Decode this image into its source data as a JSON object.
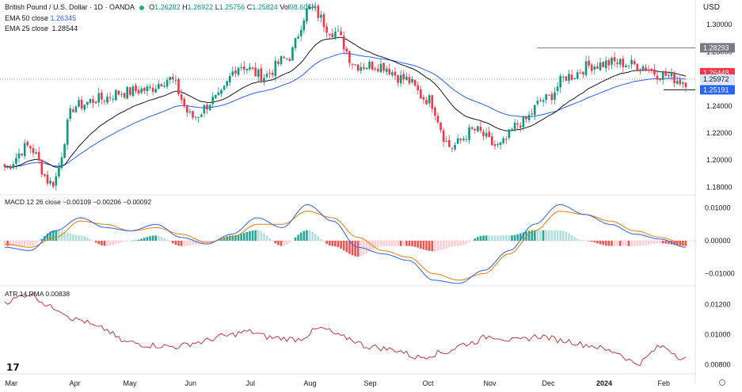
{
  "header": {
    "symbol": "British Pound / U.S. Dollar · 1D · OANDA",
    "o_label": "O",
    "o": "1.26282",
    "h_label": "H",
    "h": "1.26922",
    "l_label": "L",
    "l": "1.25756",
    "c_label": "C",
    "c": "1.25824",
    "vol_label": "Vol",
    "vol": "98.606K",
    "ema50_label": "EMA 50 close",
    "ema50": "1.26345",
    "ema25_label": "EMA 25 close",
    "ema25": "1.28544",
    "currency": "USD"
  },
  "price_axis": {
    "ticks": [
      "1.30000",
      "1.28000",
      "1.26000",
      "1.24000",
      "1.22000",
      "1.20000",
      "1.18000"
    ],
    "badges": [
      {
        "text": "1.28293",
        "color": "#787b86",
        "value": 1.28293
      },
      {
        "text": "1.26448",
        "color": "#f23645",
        "value": 1.26448
      },
      {
        "text": "1.25972",
        "color": "#dbe4f7",
        "value": 1.25972
      },
      {
        "text": "1.25191",
        "color": "#2962ff",
        "value": 1.25191
      }
    ]
  },
  "macd": {
    "label": "MACD 12 26 close",
    "v1": "−0.00109",
    "v2": "−0.00206",
    "v3": "−0.00092",
    "ticks": [
      "0.01000",
      "0.00000",
      "−0.01000"
    ]
  },
  "atr": {
    "label": "ATR 14 RMA",
    "value": "0.00838",
    "ticks": [
      "0.01200",
      "0.01000",
      "0.00800"
    ]
  },
  "x_axis": {
    "labels": [
      "Mar",
      "Apr",
      "May",
      "Jun",
      "Jul",
      "Aug",
      "Sep",
      "Oct",
      "Nov",
      "Dec",
      "2024",
      "Feb"
    ]
  },
  "colors": {
    "up": "#089981",
    "down": "#f23645",
    "ema50": "#2962ff",
    "ema25": "#131722",
    "macd": "#2962ff",
    "signal": "#f57c00",
    "atr": "#c62828"
  },
  "chart_data": [
    {
      "type": "candlestick",
      "title": "British Pound / U.S. Dollar · 1D · OANDA",
      "ylim": [
        1.175,
        1.31
      ],
      "price_waypoints": [
        [
          "Mar",
          1.195
        ],
        [
          "Mar",
          1.21
        ],
        [
          "Mar",
          1.183
        ],
        [
          "Apr",
          1.24
        ],
        [
          "Apr",
          1.245
        ],
        [
          "May",
          1.25
        ],
        [
          "May",
          1.252
        ],
        [
          "May",
          1.26
        ],
        [
          "Jun",
          1.232
        ],
        [
          "Jun",
          1.245
        ],
        [
          "Jun",
          1.27
        ],
        [
          "Jun",
          1.262
        ],
        [
          "Jul",
          1.275
        ],
        [
          "Jul",
          1.312
        ],
        [
          "Jul",
          1.295
        ],
        [
          "Aug",
          1.27
        ],
        [
          "Aug",
          1.27
        ],
        [
          "Sep",
          1.26
        ],
        [
          "Sep",
          1.245
        ],
        [
          "Oct",
          1.21
        ],
        [
          "Oct",
          1.222
        ],
        [
          "Oct",
          1.21
        ],
        [
          "Nov",
          1.228
        ],
        [
          "Nov",
          1.245
        ],
        [
          "Dec",
          1.262
        ],
        [
          "Dec",
          1.27
        ],
        [
          "2024",
          1.272
        ],
        [
          "2024",
          1.27
        ],
        [
          "Feb",
          1.263
        ],
        [
          "Feb",
          1.258
        ]
      ],
      "hlines": [
        1.28293,
        1.25191
      ]
    },
    {
      "type": "line",
      "title": "MACD 12 26 close",
      "ylim": [
        -0.0135,
        0.0135
      ],
      "series": [
        {
          "name": "MACD",
          "values": [
            -0.002,
            -0.003,
            0.003,
            0.007,
            0.004,
            0.003,
            0.005,
            0.001,
            -0.001,
            0.002,
            0.007,
            0.004,
            0.011,
            0.006,
            -0.002,
            -0.004,
            -0.006,
            -0.012,
            -0.013,
            -0.009,
            -0.003,
            0.005,
            0.011,
            0.008,
            0.005,
            0.002,
            0.0005,
            -0.002
          ]
        },
        {
          "name": "Signal",
          "values": [
            -0.001,
            -0.002,
            0.001,
            0.006,
            0.005,
            0.003,
            0.004,
            0.002,
            -0.0005,
            0.001,
            0.005,
            0.005,
            0.009,
            0.007,
            0.001,
            -0.003,
            -0.005,
            -0.01,
            -0.012,
            -0.01,
            -0.004,
            0.003,
            0.009,
            0.008,
            0.006,
            0.003,
            0.001,
            -0.001
          ]
        }
      ]
    },
    {
      "type": "line",
      "title": "ATR 14 RMA",
      "ylim": [
        0.0075,
        0.0132
      ],
      "series": [
        {
          "name": "ATR",
          "values": [
            0.0122,
            0.0127,
            0.0118,
            0.011,
            0.0104,
            0.0095,
            0.0093,
            0.0092,
            0.0095,
            0.0099,
            0.0102,
            0.0098,
            0.0097,
            0.0104,
            0.0098,
            0.0092,
            0.009,
            0.0085,
            0.0088,
            0.0094,
            0.0099,
            0.0096,
            0.0099,
            0.0096,
            0.0093,
            0.0089,
            0.0081,
            0.0092,
            0.0084
          ]
        }
      ]
    }
  ]
}
